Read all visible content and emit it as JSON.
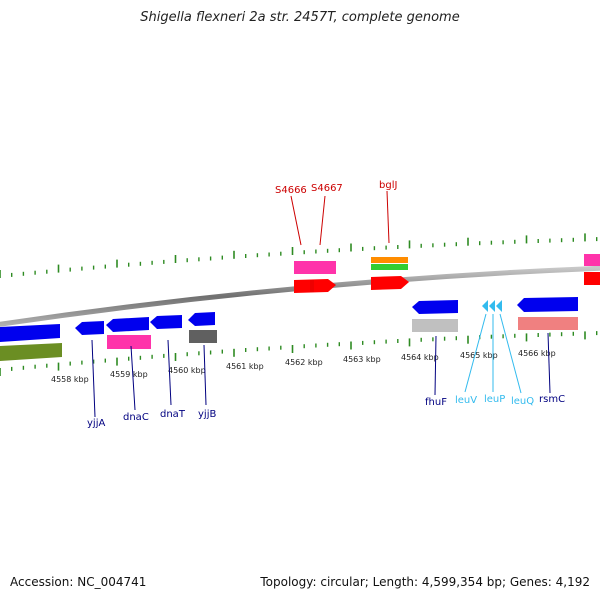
{
  "title": "Shigella flexneri 2a str. 2457T, complete genome",
  "accession": "Accession: NC_004741",
  "summary": "Topology: circular; Length: 4,599,354 bp; Genes: 4,192",
  "kbp_ticks": [
    "4558 kbp",
    "4559 kbp",
    "4560 kbp",
    "4561 kbp",
    "4562 kbp",
    "4563 kbp",
    "4564 kbp",
    "4565 kbp",
    "4566 kbp"
  ],
  "gene_labels": [
    "yjjA",
    "dnaC",
    "dnaT",
    "yjjB",
    "fhuF",
    "leuV",
    "leuP",
    "leuQ",
    "rsmC",
    "S4666",
    "S4667",
    "bglJ"
  ],
  "colors": {
    "backbone": "#808080",
    "tick": "#2e8b22",
    "forward_gene": "#ff0000",
    "reverse_gene": "#0000ee",
    "cds_pink": "#ff33aa",
    "rrna_salmon": "#f08080",
    "trna_cyan": "#33bbee",
    "pseudo_gray": "#c0c0c0",
    "dark_gray": "#606060",
    "olive": "#6b8e23",
    "orange": "#ff8c00",
    "green": "#32cd32",
    "label_navy": "#000080",
    "label_red": "#cc0000"
  }
}
